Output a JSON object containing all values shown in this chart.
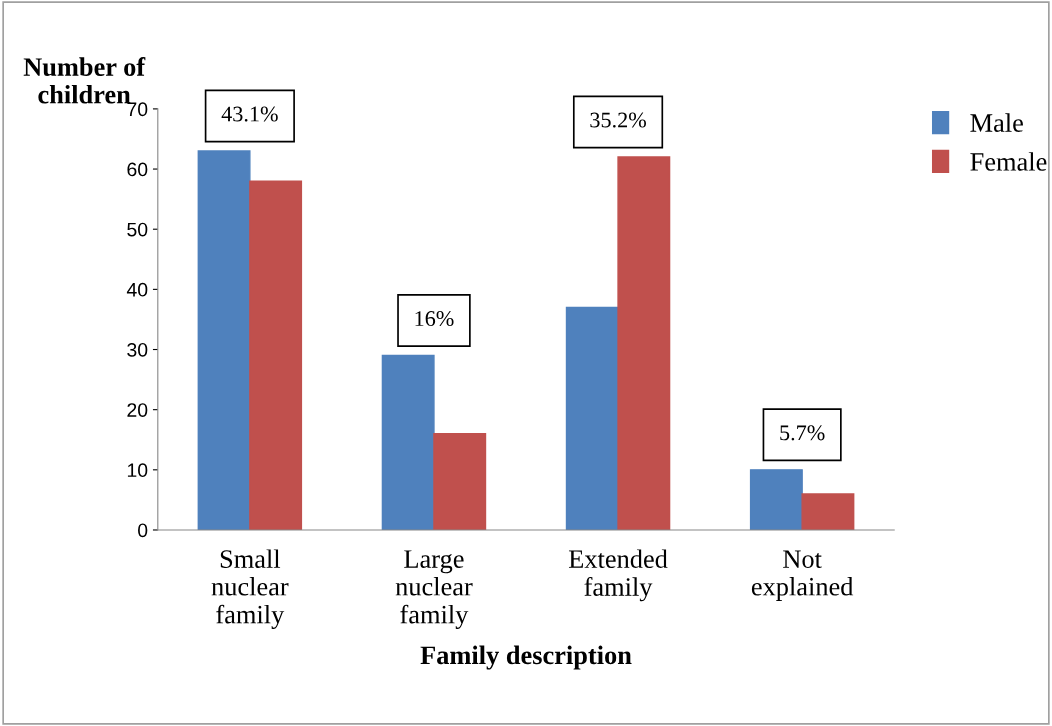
{
  "chart_data": {
    "type": "bar",
    "ylabel": "Number of\nchildren",
    "xlabel": "Family description",
    "categories": [
      "Small\nnuclear\nfamily",
      "Large\nnuclear\nfamily",
      "Extended\nfamily",
      "Not\nexplained"
    ],
    "series": [
      {
        "name": "Male",
        "color": "#4f81bd",
        "values": [
          63,
          29,
          37,
          10
        ]
      },
      {
        "name": "Female",
        "color": "#c0504d",
        "values": [
          58,
          16,
          62,
          6
        ]
      }
    ],
    "annotations": [
      "43.1%",
      "16%",
      "35.2%",
      "5.7%"
    ],
    "ylim": [
      0,
      70
    ],
    "yticks": [
      0,
      10,
      20,
      30,
      40,
      50,
      60,
      70
    ],
    "grid": false,
    "legend": "top right"
  }
}
